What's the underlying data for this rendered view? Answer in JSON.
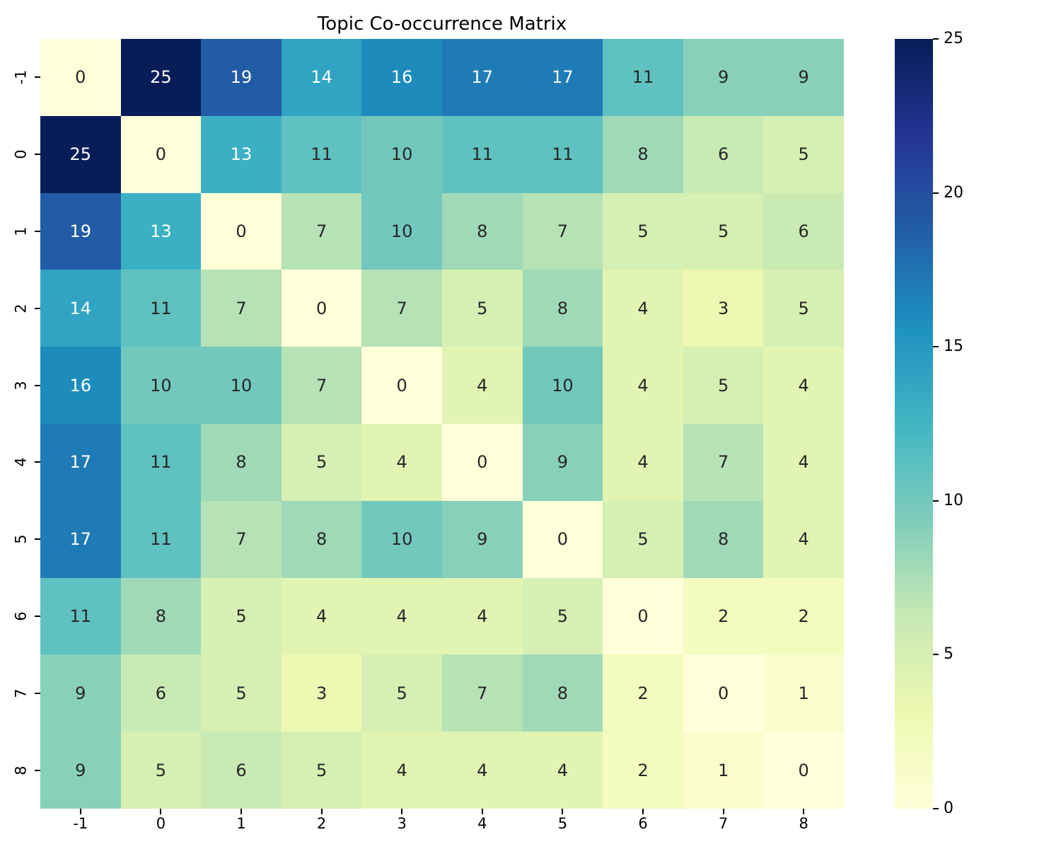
{
  "figure": {
    "background": "#ffffff"
  },
  "chart_data": {
    "type": "heatmap",
    "title": "Topic Co-occurrence Matrix",
    "x_tick_labels": [
      "-1",
      "0",
      "1",
      "2",
      "3",
      "4",
      "5",
      "6",
      "7",
      "8"
    ],
    "y_tick_labels": [
      "-1",
      "0",
      "1",
      "2",
      "3",
      "4",
      "5",
      "6",
      "7",
      "8"
    ],
    "matrix": [
      [
        0,
        25,
        19,
        14,
        16,
        17,
        17,
        11,
        9,
        9
      ],
      [
        25,
        0,
        13,
        11,
        10,
        11,
        11,
        8,
        6,
        5
      ],
      [
        19,
        13,
        0,
        7,
        10,
        8,
        7,
        5,
        5,
        6
      ],
      [
        14,
        11,
        7,
        0,
        7,
        5,
        8,
        4,
        3,
        5
      ],
      [
        16,
        10,
        10,
        7,
        0,
        4,
        10,
        4,
        5,
        4
      ],
      [
        17,
        11,
        8,
        5,
        4,
        0,
        9,
        4,
        7,
        4
      ],
      [
        17,
        11,
        7,
        8,
        10,
        9,
        0,
        5,
        8,
        4
      ],
      [
        11,
        8,
        5,
        4,
        4,
        4,
        5,
        0,
        2,
        2
      ],
      [
        9,
        6,
        5,
        3,
        5,
        7,
        8,
        2,
        0,
        1
      ],
      [
        9,
        5,
        6,
        5,
        4,
        4,
        4,
        2,
        1,
        0
      ]
    ],
    "vmin": 0,
    "vmax": 25,
    "annotations_on": true,
    "grid": false,
    "legend_position": "right-colorbar",
    "colorbar": {
      "tick_values": [
        25,
        20,
        15,
        10,
        5,
        0
      ],
      "tick_labels": [
        "25",
        "20",
        "15",
        "10",
        "5",
        "0"
      ]
    },
    "colormap": {
      "name": "YlGnBu",
      "anchors": [
        {
          "pos": 0.0,
          "color": "#ffffd9"
        },
        {
          "pos": 0.125,
          "color": "#edf8b1"
        },
        {
          "pos": 0.25,
          "color": "#c7e9b4"
        },
        {
          "pos": 0.375,
          "color": "#7fcdbb"
        },
        {
          "pos": 0.5,
          "color": "#41b6c4"
        },
        {
          "pos": 0.625,
          "color": "#1d91c0"
        },
        {
          "pos": 0.75,
          "color": "#225ea8"
        },
        {
          "pos": 0.875,
          "color": "#253494"
        },
        {
          "pos": 1.0,
          "color": "#081d58"
        }
      ],
      "annotation_text_dark": "#262626",
      "annotation_text_light": "#ffffff"
    }
  }
}
